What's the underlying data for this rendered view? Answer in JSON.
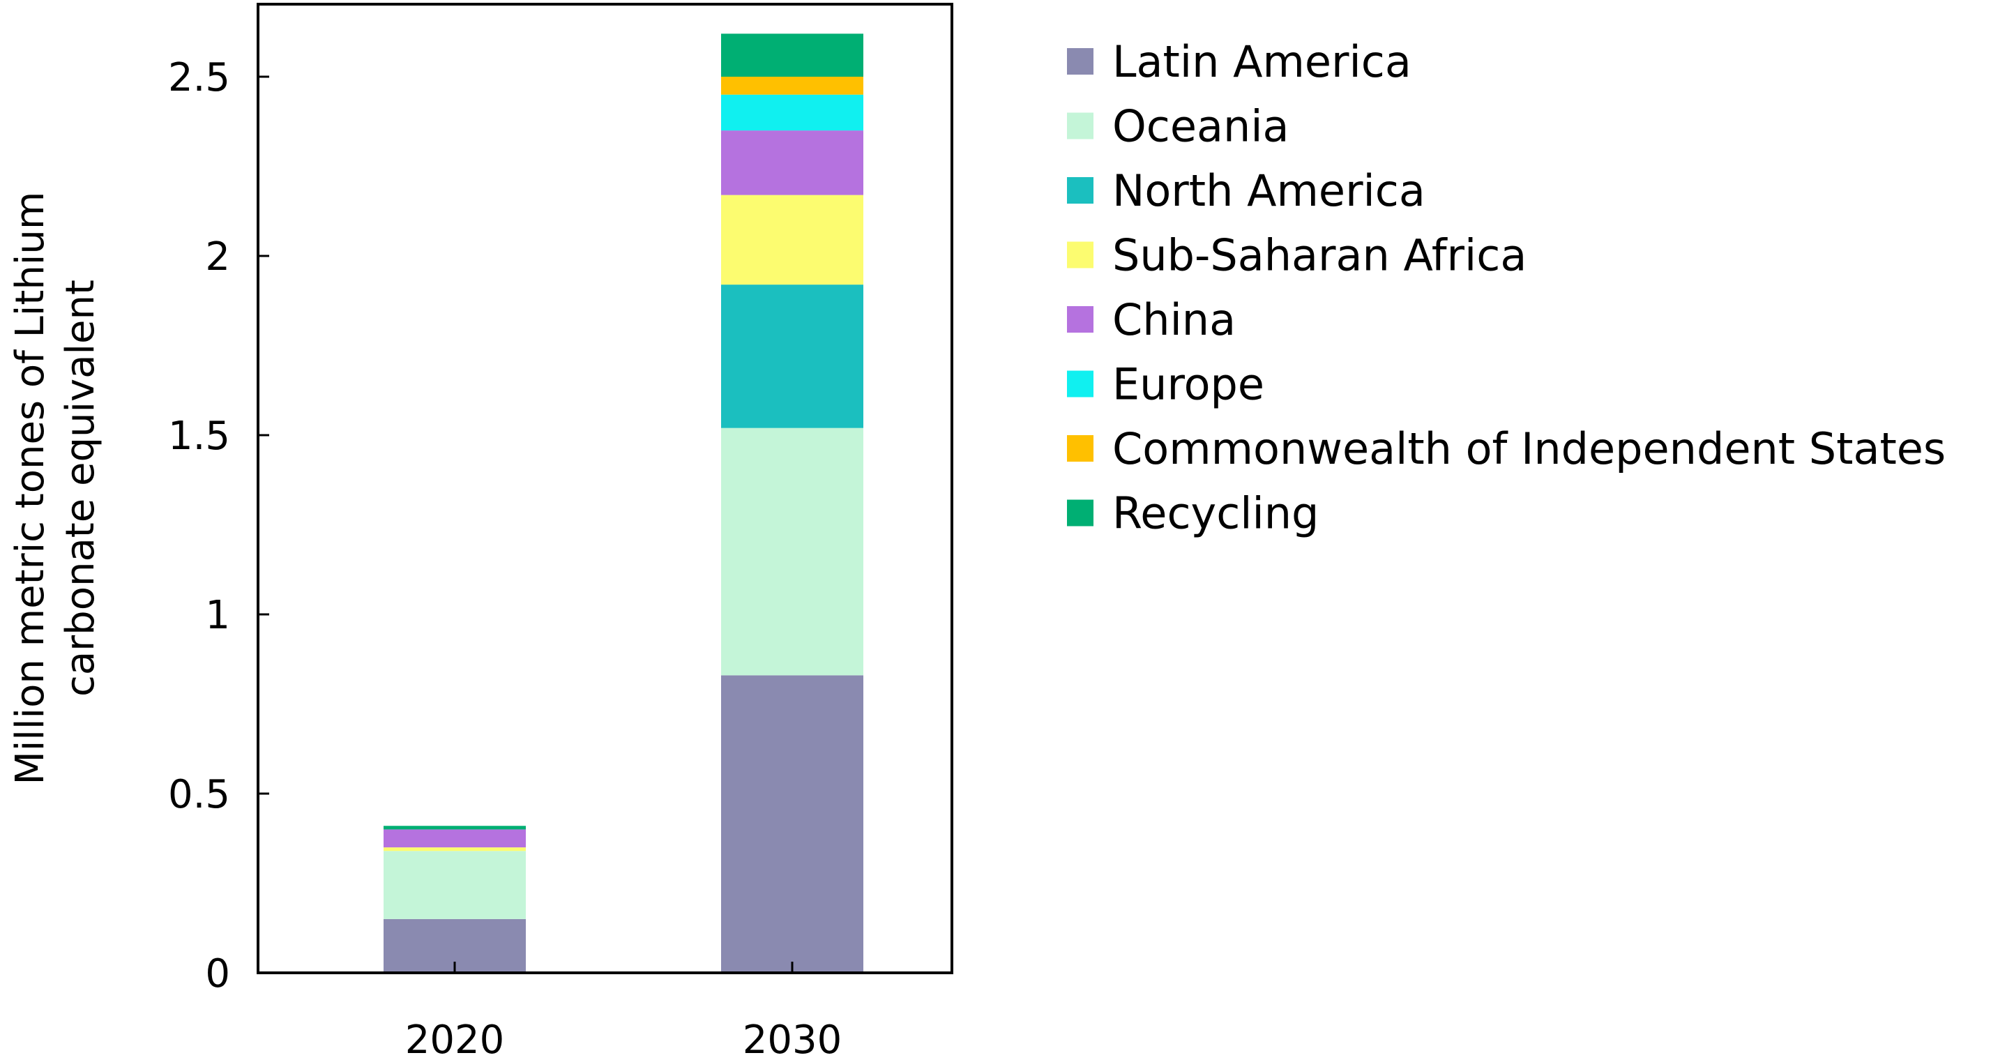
{
  "chart_data": {
    "type": "bar",
    "stacked": true,
    "categories": [
      "2020",
      "2030"
    ],
    "ylabel": "Million metric tones of Lithium carbonate equivalent",
    "ylabel_lines": [
      "Million metric tones of Lithium",
      "carbonate equivalent"
    ],
    "xlabel": "",
    "ylim": [
      0,
      2.5
    ],
    "yticks": [
      0,
      0.5,
      1,
      1.5,
      2,
      2.5
    ],
    "ytick_labels": [
      "0",
      "0.5",
      "1",
      "1.5",
      "2",
      "2.5"
    ],
    "grid": false,
    "legend_position": "right",
    "series": [
      {
        "name": "Latin America",
        "color": "#8A8AB0",
        "values": [
          0.15,
          0.83
        ]
      },
      {
        "name": "Oceania",
        "color": "#C4F5D8",
        "values": [
          0.19,
          0.69
        ]
      },
      {
        "name": "North America",
        "color": "#1BBFBF",
        "values": [
          0.0,
          0.4
        ]
      },
      {
        "name": "Sub-Saharan Africa",
        "color": "#FCFC70",
        "values": [
          0.01,
          0.25
        ]
      },
      {
        "name": "China",
        "color": "#B572DF",
        "values": [
          0.05,
          0.18
        ]
      },
      {
        "name": "Europe",
        "color": "#10F0F0",
        "values": [
          0.0,
          0.1
        ]
      },
      {
        "name": "Commonwealth of Independent States",
        "color": "#FFC000",
        "values": [
          0.0,
          0.05
        ]
      },
      {
        "name": "Recycling",
        "color": "#00AF73",
        "values": [
          0.01,
          0.12
        ]
      }
    ]
  }
}
